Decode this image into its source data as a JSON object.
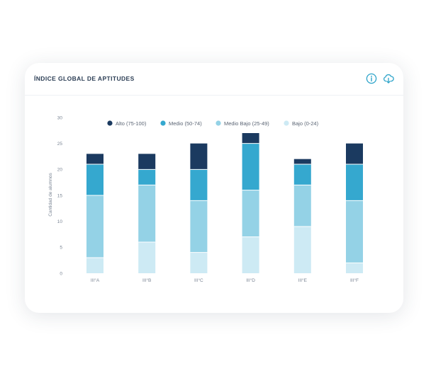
{
  "header": {
    "title": "ÍNDICE GLOBAL DE APTITUDES",
    "info_icon": "info-icon",
    "download_icon": "cloud-download-icon"
  },
  "chart_data": {
    "type": "bar",
    "stacked": true,
    "title": "ÍNDICE GLOBAL DE APTITUDES",
    "xlabel": "",
    "ylabel": "Cantidad de alumnos",
    "ylim": [
      0,
      30
    ],
    "yticks": [
      0,
      5,
      10,
      15,
      20,
      25,
      30
    ],
    "grid": false,
    "legend_position": "top",
    "categories": [
      "III°A",
      "III°B",
      "III°C",
      "III°D",
      "III°E",
      "III°F"
    ],
    "series": [
      {
        "name": "Bajo (0-24)",
        "color": "#cdeaf4",
        "values": [
          3,
          6,
          4,
          7,
          9,
          2
        ]
      },
      {
        "name": "Medio Bajo (25-49)",
        "color": "#94d2e6",
        "values": [
          12,
          11,
          10,
          9,
          8,
          12
        ]
      },
      {
        "name": "Medio (50-74)",
        "color": "#35a8cf",
        "values": [
          6,
          3,
          6,
          9,
          4,
          7
        ]
      },
      {
        "name": "Alto (75-100)",
        "color": "#1b3a60",
        "values": [
          2,
          3,
          5,
          2,
          1,
          4
        ]
      }
    ],
    "legend_order": [
      "Alto (75-100)",
      "Medio (50-74)",
      "Medio Bajo (25-49)",
      "Bajo (0-24)"
    ]
  }
}
